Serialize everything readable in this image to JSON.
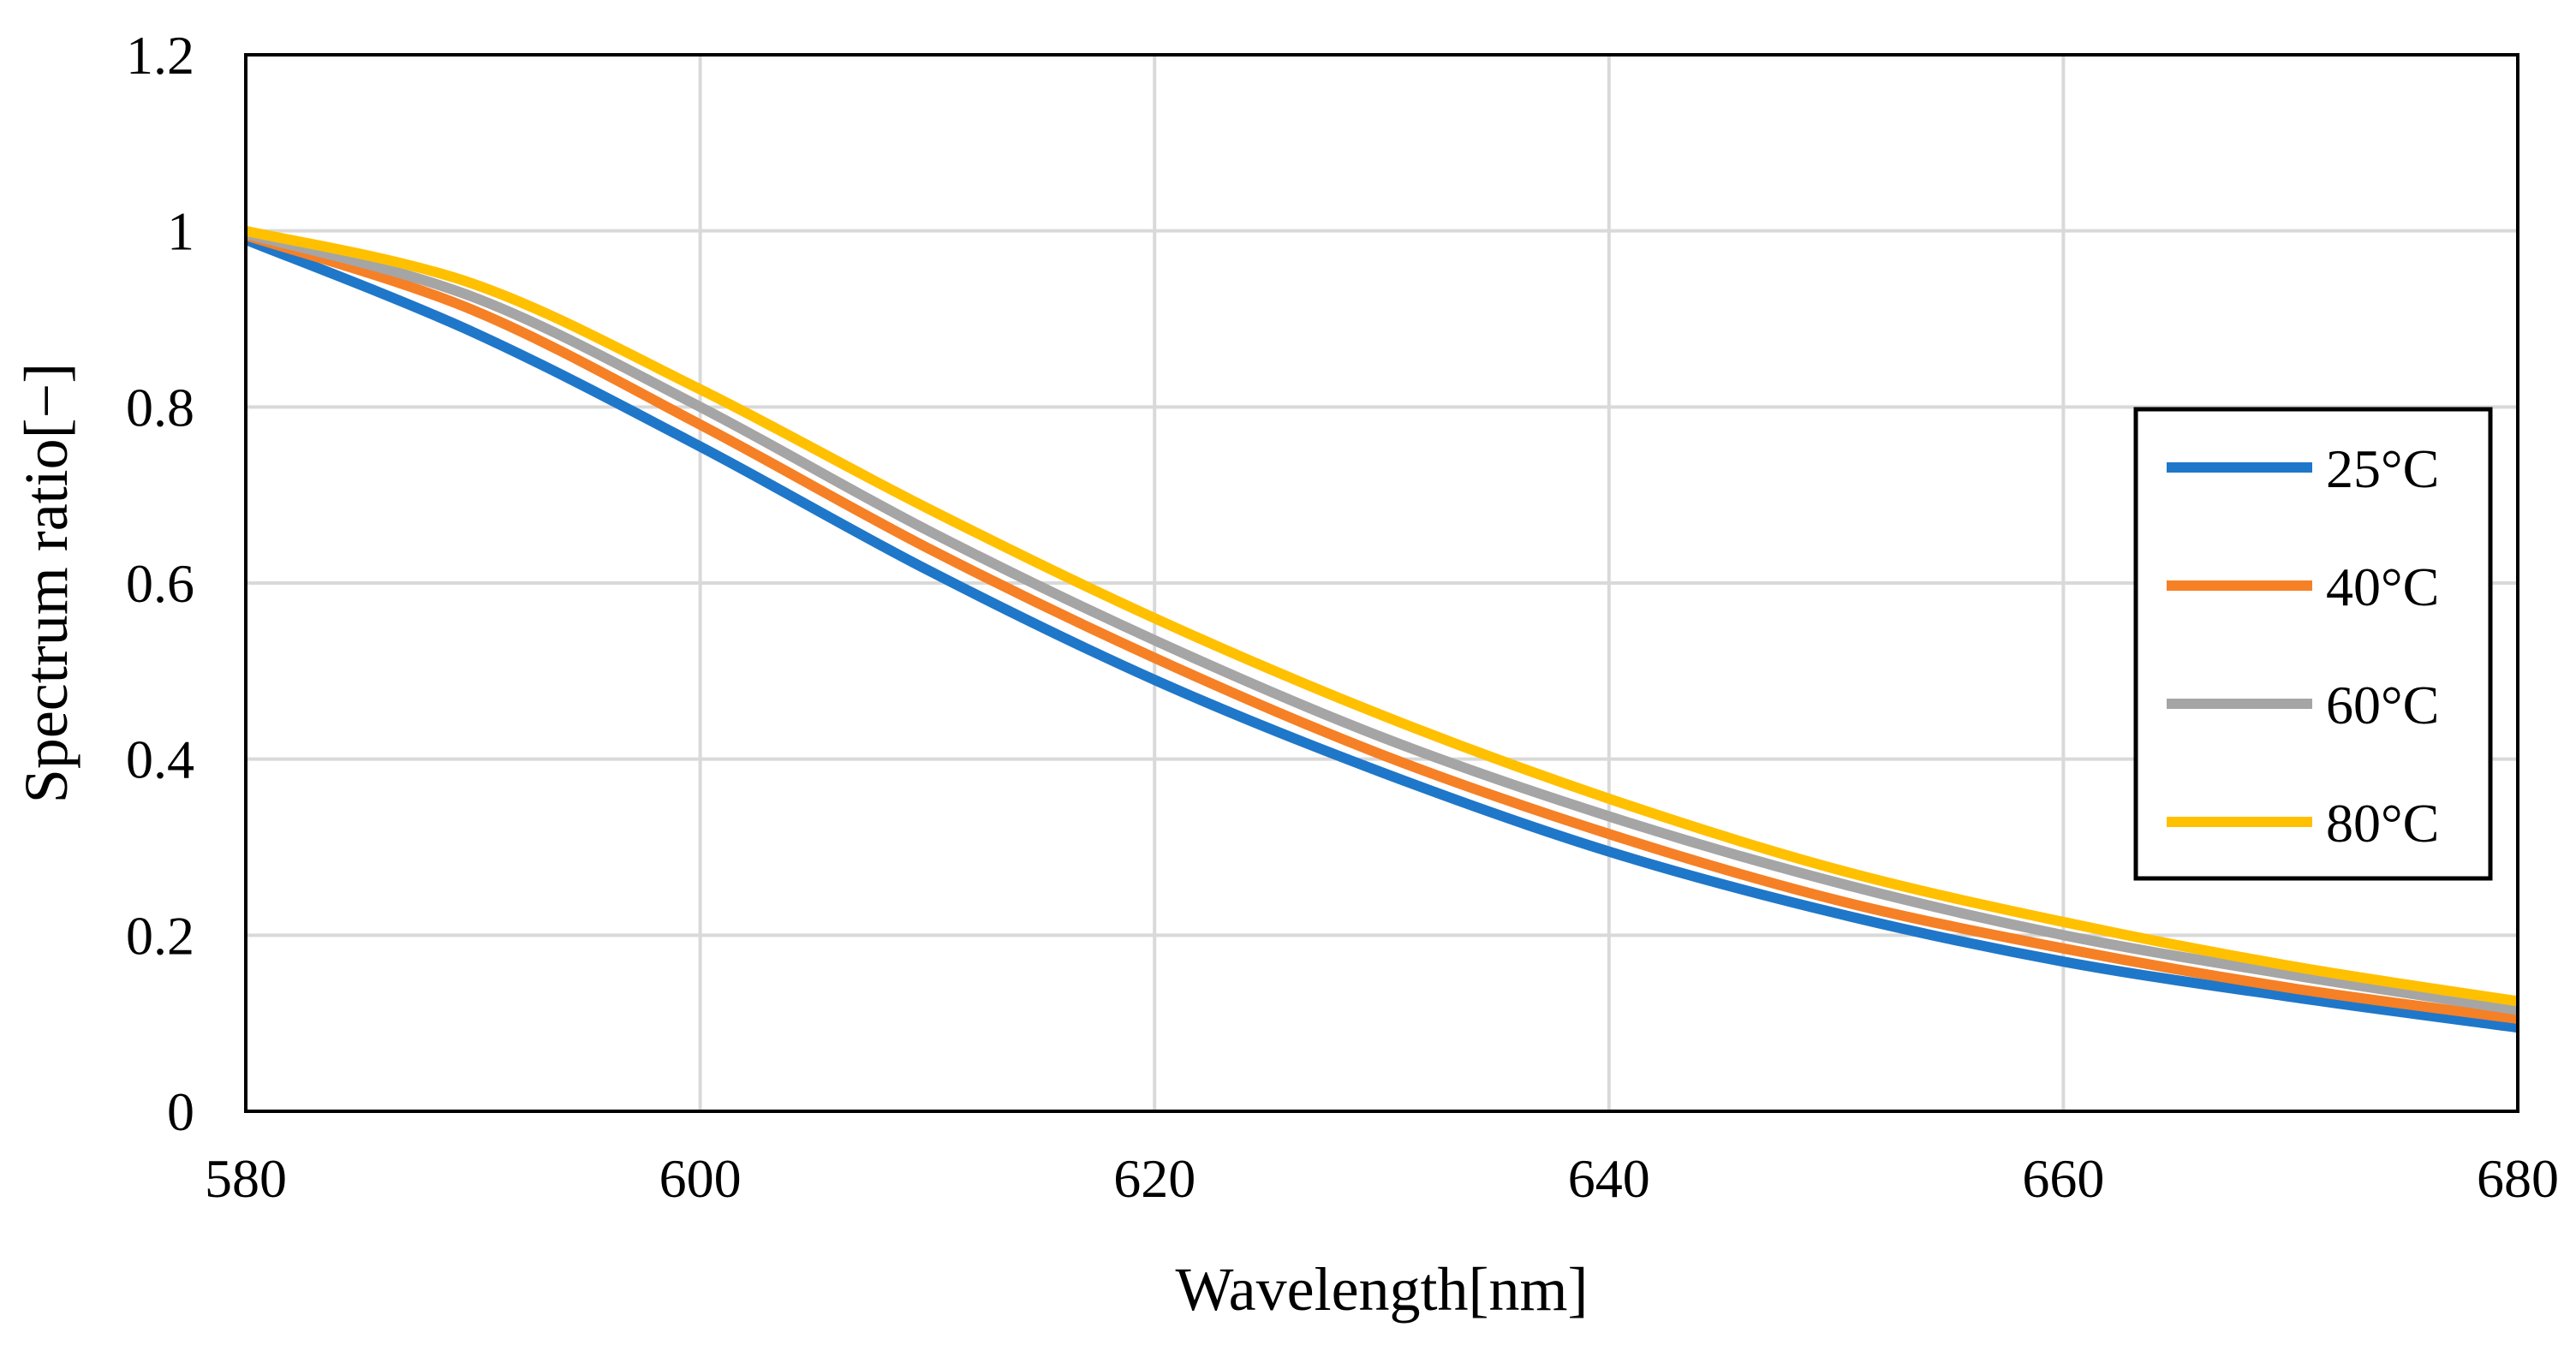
{
  "chart_data": {
    "type": "line",
    "title": "",
    "xlabel": "Wavelength[nm]",
    "ylabel": "Spectrum ratio[−]",
    "xlim": [
      580,
      680
    ],
    "ylim": [
      0,
      1.2
    ],
    "xticks": [
      580,
      600,
      620,
      640,
      660,
      680
    ],
    "yticks": [
      0,
      0.2,
      0.4,
      0.6,
      0.8,
      1,
      1.2
    ],
    "xtick_labels": [
      "580",
      "600",
      "620",
      "640",
      "660",
      "680"
    ],
    "ytick_labels": [
      "0",
      "0.2",
      "0.4",
      "0.6",
      "0.8",
      "1",
      "1.2"
    ],
    "grid": true,
    "legend_position": "right",
    "x": [
      580,
      590,
      600,
      610,
      620,
      630,
      640,
      650,
      660,
      670,
      680
    ],
    "series": [
      {
        "name": "25°C",
        "color": "#1f77c9",
        "values": [
          0.99,
          0.885,
          0.755,
          0.615,
          0.49,
          0.385,
          0.295,
          0.225,
          0.17,
          0.13,
          0.095
        ]
      },
      {
        "name": "40°C",
        "color": "#f58026",
        "values": [
          0.995,
          0.91,
          0.78,
          0.64,
          0.515,
          0.405,
          0.315,
          0.24,
          0.185,
          0.14,
          0.105
        ]
      },
      {
        "name": "60°C",
        "color": "#a5a5a5",
        "values": [
          0.997,
          0.925,
          0.8,
          0.66,
          0.535,
          0.425,
          0.335,
          0.26,
          0.2,
          0.155,
          0.115
        ]
      },
      {
        "name": "80°C",
        "color": "#ffc000",
        "values": [
          1.0,
          0.94,
          0.82,
          0.685,
          0.56,
          0.45,
          0.355,
          0.275,
          0.215,
          0.165,
          0.125
        ]
      }
    ]
  }
}
